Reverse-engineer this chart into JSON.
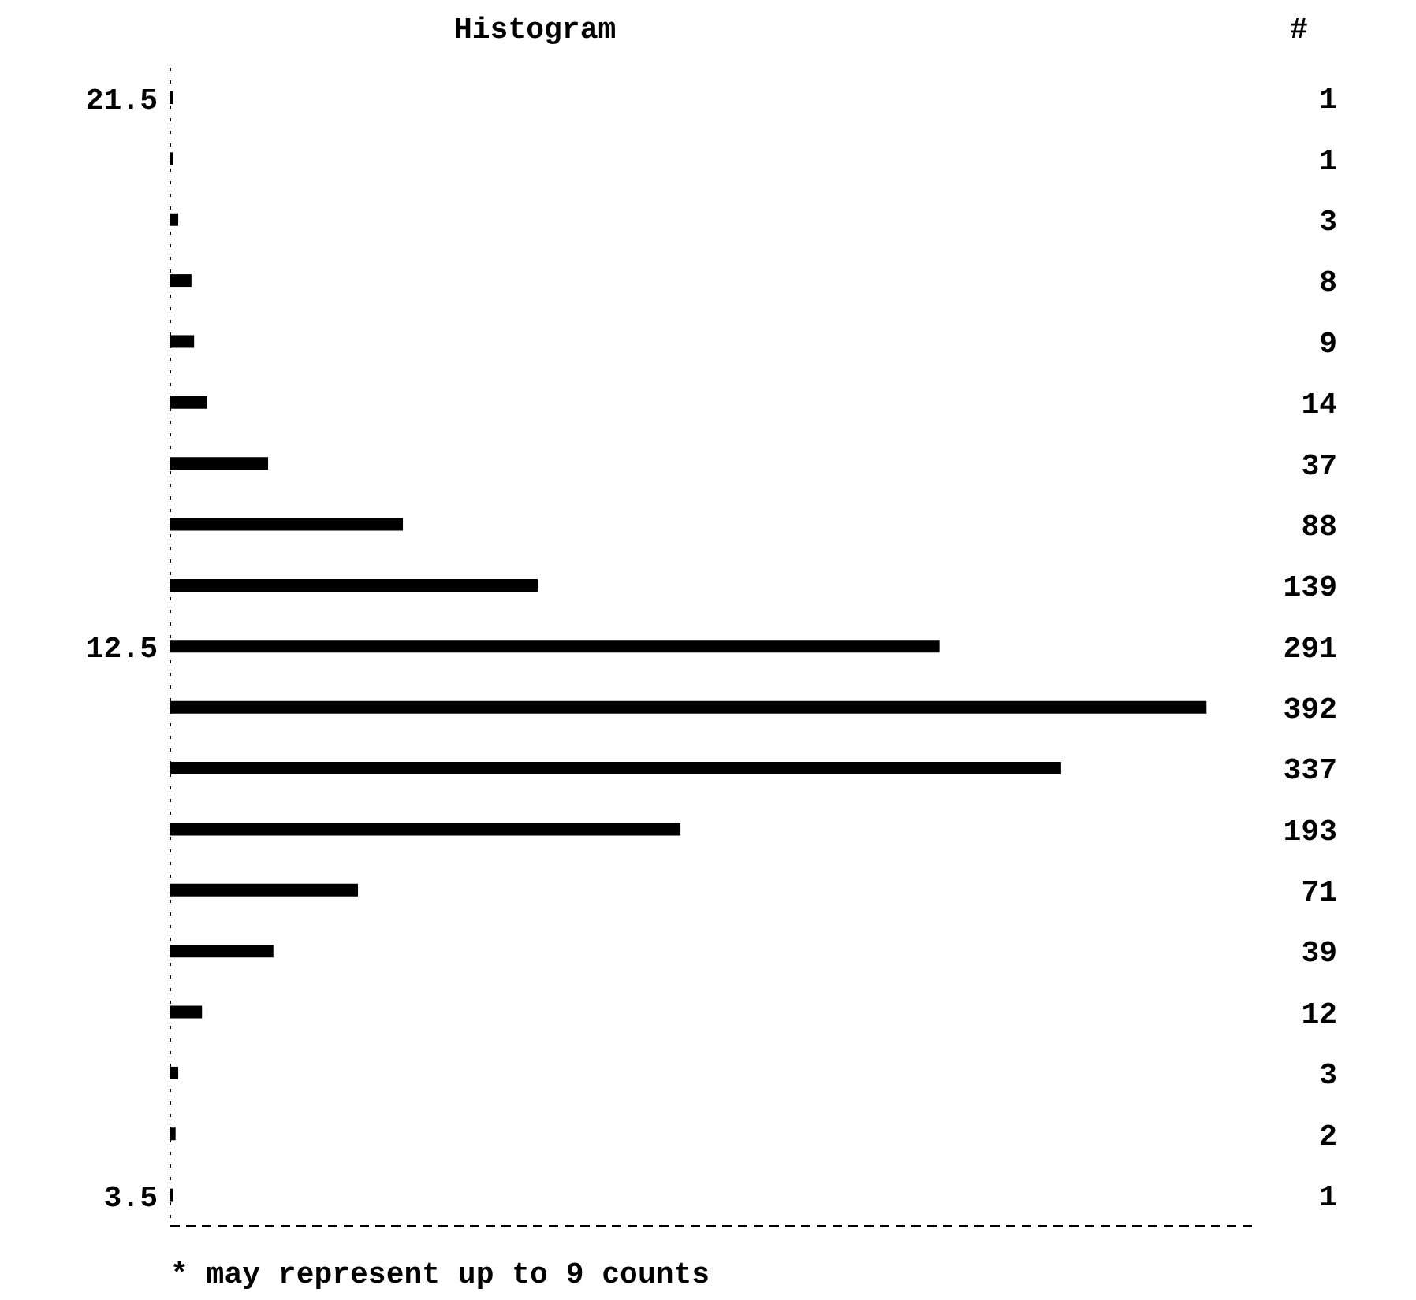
{
  "chart_data": {
    "type": "bar",
    "orientation": "horizontal",
    "title": "Histogram",
    "legend_title": "#",
    "categories": [
      "21.5",
      null,
      null,
      null,
      null,
      null,
      null,
      null,
      null,
      "12.5",
      null,
      null,
      null,
      null,
      null,
      null,
      null,
      null,
      "3.5"
    ],
    "values": [
      1,
      1,
      3,
      8,
      9,
      14,
      37,
      88,
      139,
      291,
      392,
      337,
      193,
      71,
      39,
      12,
      3,
      2,
      1
    ],
    "color": "#000000",
    "data_labels": true,
    "annotations": [
      "* may represent up to 9 counts"
    ]
  }
}
